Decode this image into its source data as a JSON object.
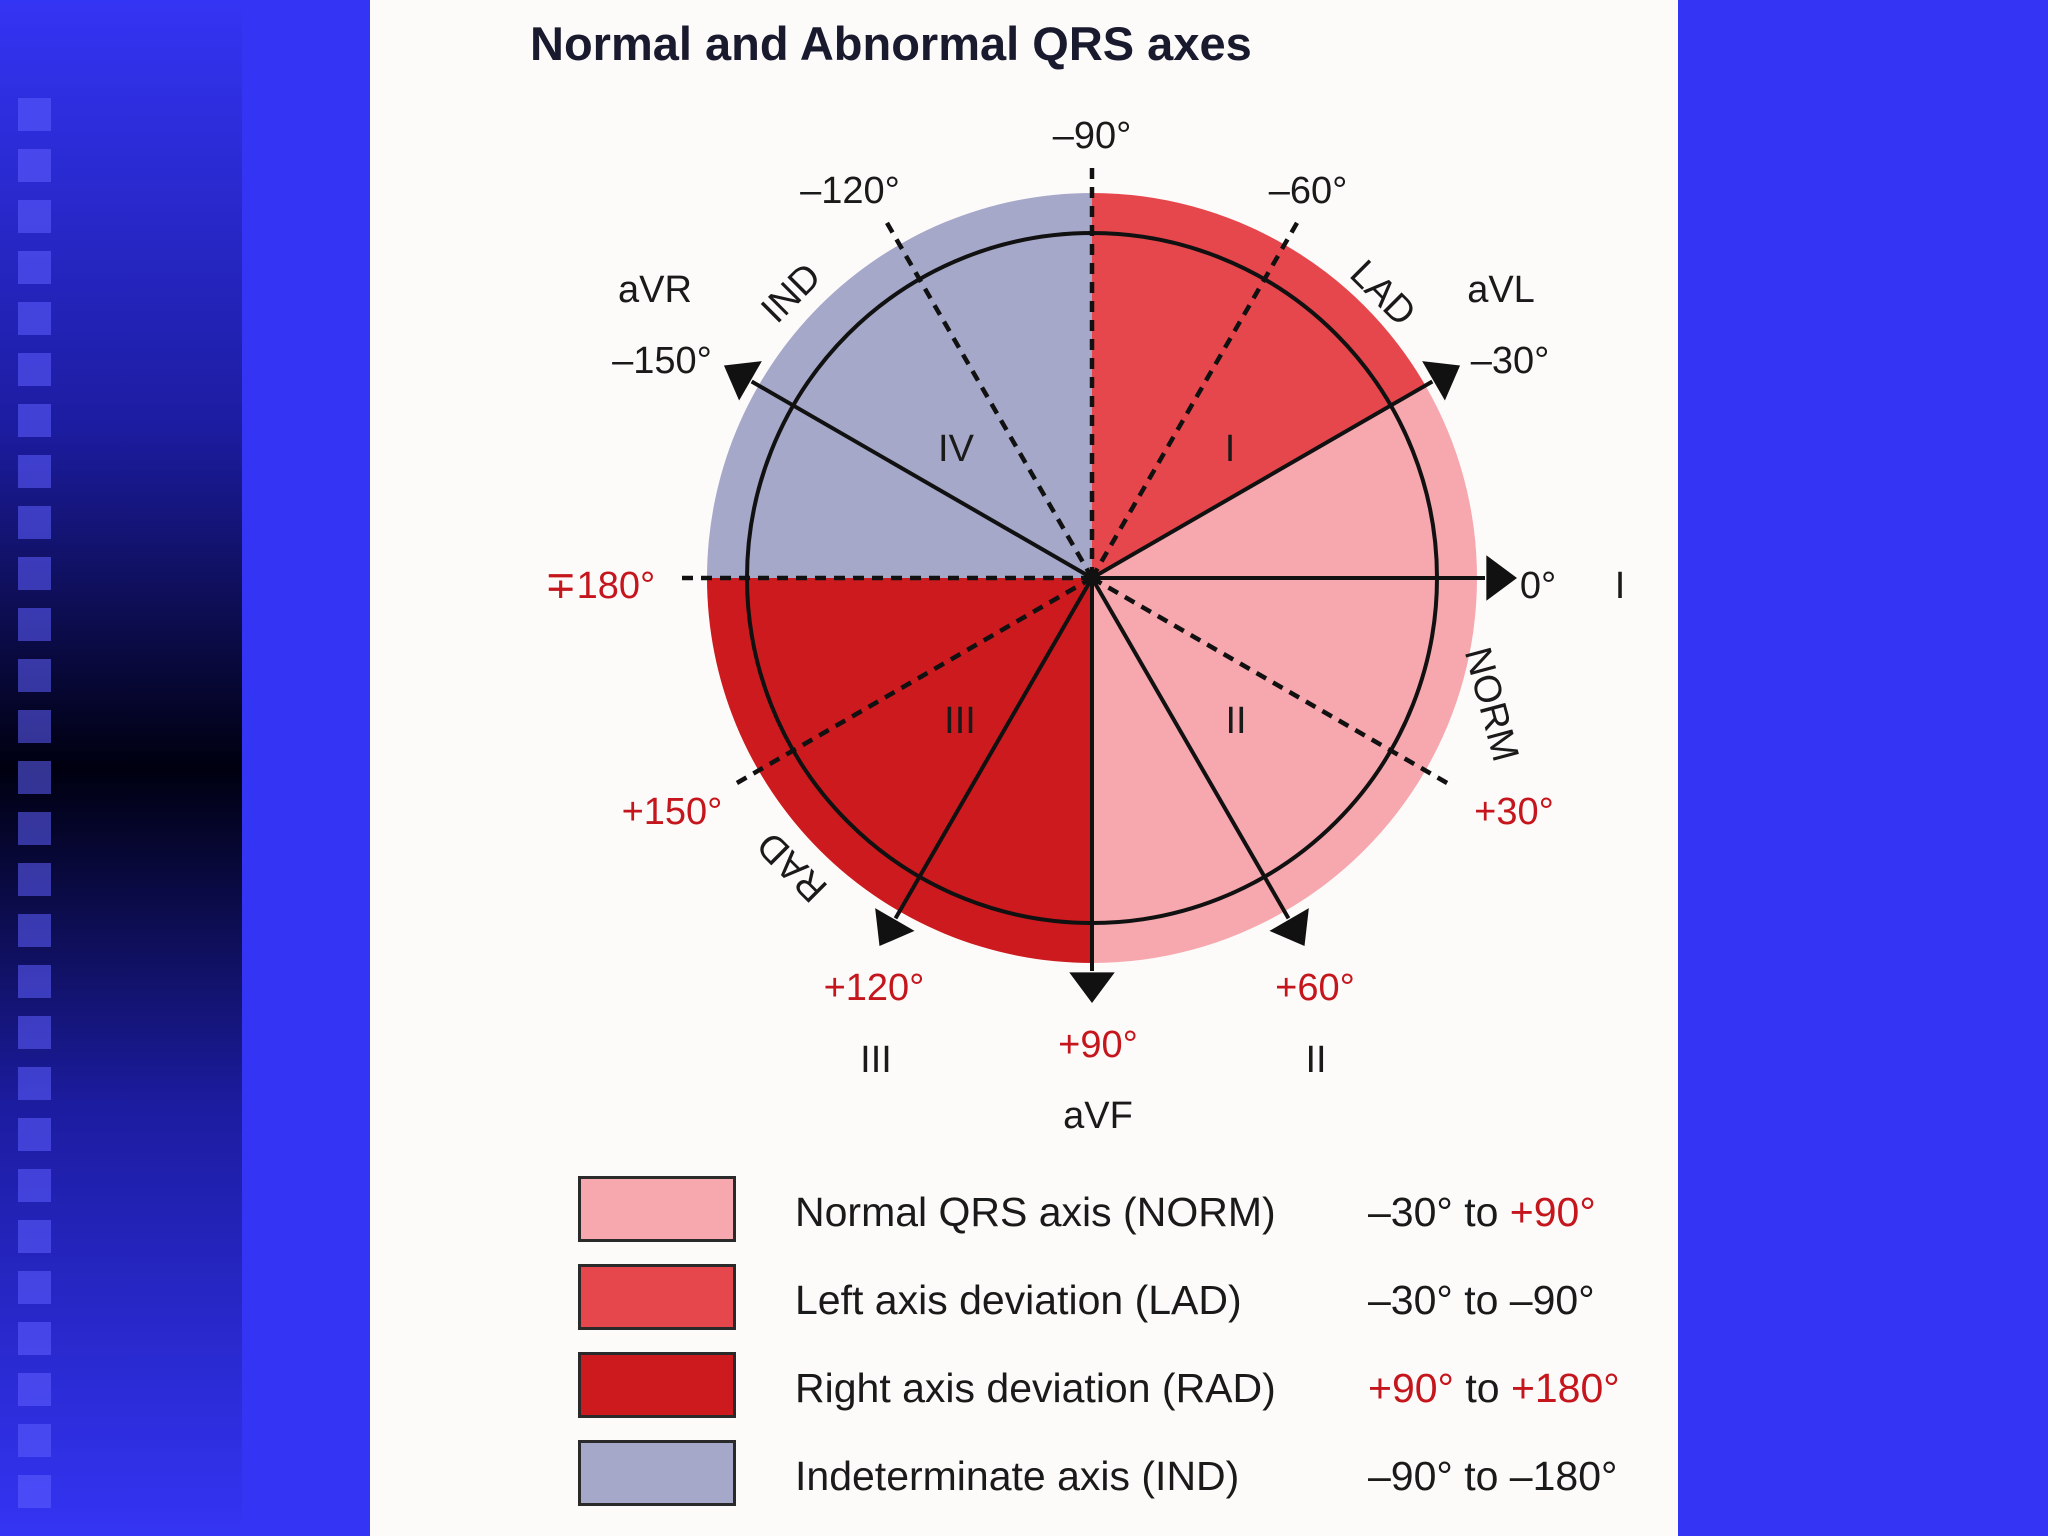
{
  "title": "Normal and Abnormal QRS axes",
  "colors": {
    "norm": "#f6a8ae",
    "lad": "#e6474d",
    "rad": "#cc1a1e",
    "ind": "#a5a8c9",
    "positive_text": "#c4161c",
    "background": "#3434f4"
  },
  "degree_labels": {
    "m90": "–90°",
    "m120": "–120°",
    "m60": "–60°",
    "m150": "–150°",
    "m30": "–30°",
    "deg0": "0°",
    "pm180": "∓180°",
    "p150": "+150°",
    "p30": "+30°",
    "p120": "+120°",
    "p60": "+60°",
    "p90": "+90°"
  },
  "lead_labels": {
    "avr": "aVR",
    "avl": "aVL",
    "i": "I",
    "iii": "III",
    "ii": "II",
    "avf": "aVF"
  },
  "region_labels": {
    "ind": "IND",
    "lad": "LAD",
    "norm": "NORM",
    "rad": "RAD"
  },
  "quadrant_labels": {
    "q1": "I",
    "q2": "II",
    "q3": "III",
    "q4": "IV"
  },
  "legend": [
    {
      "label": "Normal QRS axis (NORM)",
      "range_start": "–30°",
      "range_to": " to ",
      "range_end": "+90°",
      "start_red": false,
      "end_red": true
    },
    {
      "label": "Left axis deviation (LAD)",
      "range_start": "–30°",
      "range_to": " to ",
      "range_end": "–90°",
      "start_red": false,
      "end_red": false
    },
    {
      "label": "Right axis deviation (RAD)",
      "range_start": "+90°",
      "range_to": " to ",
      "range_end": "+180°",
      "start_red": true,
      "end_red": true
    },
    {
      "label": "Indeterminate axis (IND)",
      "range_start": "–90°",
      "range_to": " to ",
      "range_end": "–180°",
      "start_red": false,
      "end_red": false
    }
  ]
}
